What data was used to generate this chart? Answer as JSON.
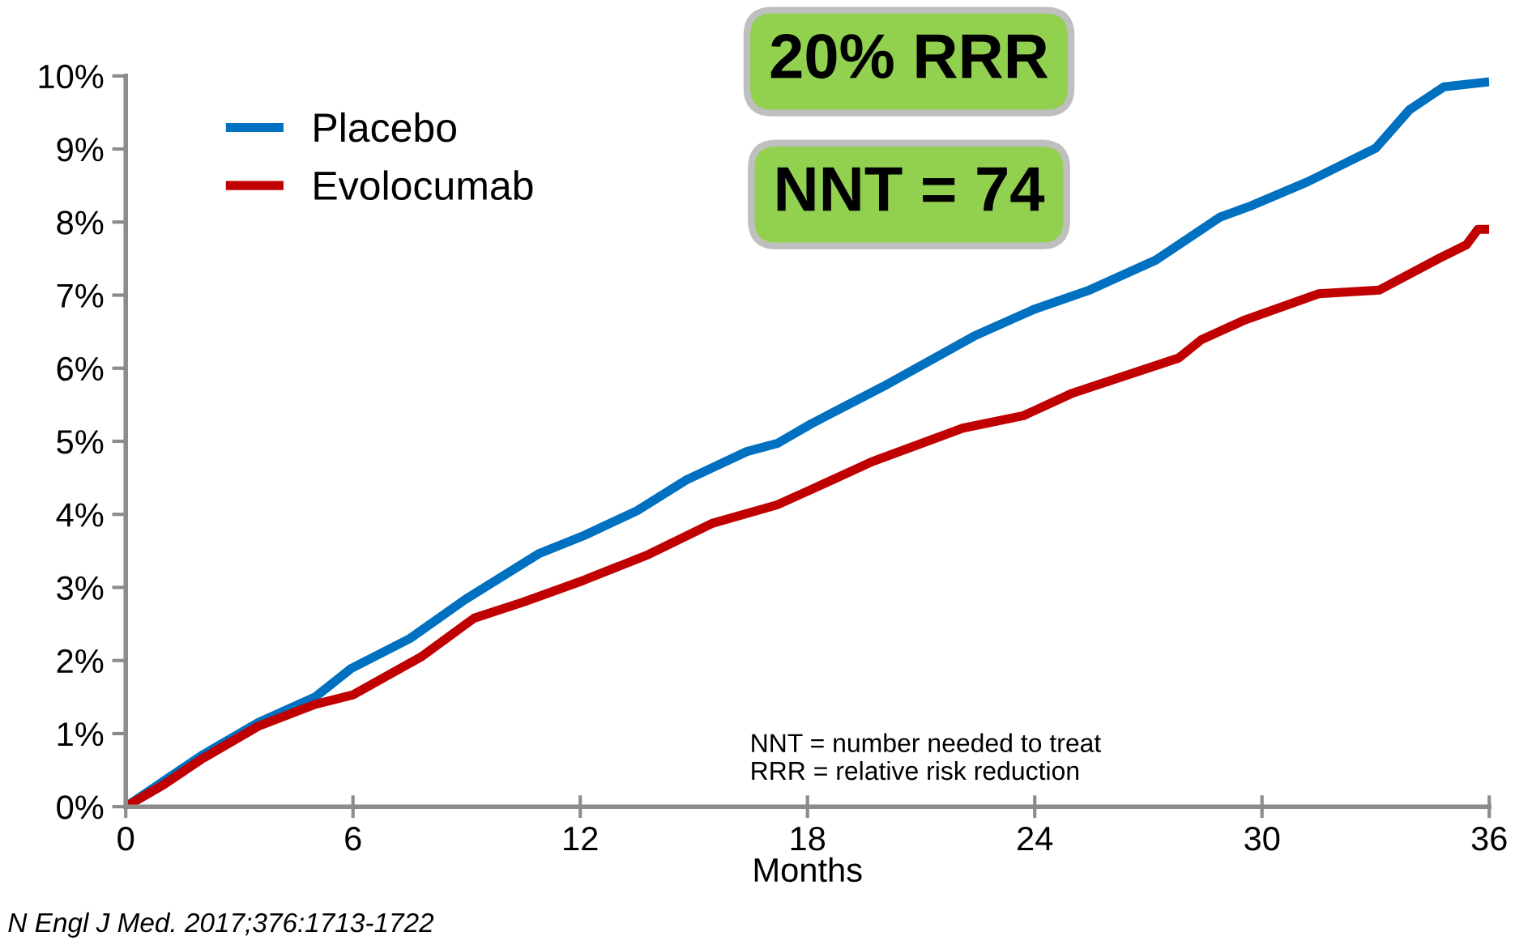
{
  "chart_data": {
    "type": "line",
    "xlabel": "Months",
    "xlim": [
      0,
      36
    ],
    "xticks": [
      0,
      6,
      12,
      18,
      24,
      30,
      36
    ],
    "ylim": [
      0,
      10
    ],
    "yticks": [
      {
        "value": 0,
        "label": "0%"
      },
      {
        "value": 1,
        "label": "1%"
      },
      {
        "value": 2,
        "label": "2%"
      },
      {
        "value": 3,
        "label": "3%"
      },
      {
        "value": 4,
        "label": "4%"
      },
      {
        "value": 5,
        "label": "5%"
      },
      {
        "value": 6,
        "label": "6%"
      },
      {
        "value": 7,
        "label": "7%"
      },
      {
        "value": 8,
        "label": "8%"
      },
      {
        "value": 9,
        "label": "9%"
      },
      {
        "value": 10,
        "label": "10%"
      }
    ],
    "grid": false,
    "legend": "top left",
    "marker": "none",
    "line_style": "solid",
    "series": [
      {
        "name": "Placebo",
        "color": "#0070c0",
        "x": [
          0,
          1,
          2,
          3.5,
          5,
          5.95,
          7.5,
          8.95,
          10.9,
          12.1,
          13.5,
          14.8,
          16.4,
          17.2,
          18.1,
          20,
          22.4,
          24,
          25.4,
          27.2,
          28.9,
          29.7,
          31.2,
          33.0,
          33.9,
          34.8,
          36
        ],
        "values": [
          0,
          0.35,
          0.7,
          1.15,
          1.5,
          1.89,
          2.3,
          2.83,
          3.46,
          3.71,
          4.05,
          4.47,
          4.86,
          4.97,
          5.24,
          5.75,
          6.44,
          6.81,
          7.06,
          7.48,
          8.07,
          8.22,
          8.55,
          9.01,
          9.54,
          9.85,
          9.92
        ]
      },
      {
        "name": "Evolocumab",
        "color": "#c00000",
        "x": [
          0,
          1,
          2,
          3.5,
          5,
          6,
          7.8,
          9.2,
          10.5,
          12.1,
          13.8,
          15.5,
          17.2,
          18.1,
          19.7,
          22.1,
          23.7,
          25.0,
          27.8,
          28.4,
          29.5,
          31.5,
          33.1,
          34.7,
          35.4,
          35.7,
          36
        ],
        "values": [
          0,
          0.3,
          0.65,
          1.1,
          1.4,
          1.53,
          2.05,
          2.58,
          2.8,
          3.1,
          3.45,
          3.88,
          4.13,
          4.34,
          4.72,
          5.18,
          5.35,
          5.66,
          6.14,
          6.39,
          6.65,
          7.02,
          7.07,
          7.51,
          7.69,
          7.9,
          7.9
        ]
      }
    ],
    "annotations": [
      "20% RRR",
      "NNT = 74",
      "NNT = number needed to treat\nRRR = relative risk reduction",
      "N Engl J Med. 2017;376:1713-1722"
    ]
  }
}
